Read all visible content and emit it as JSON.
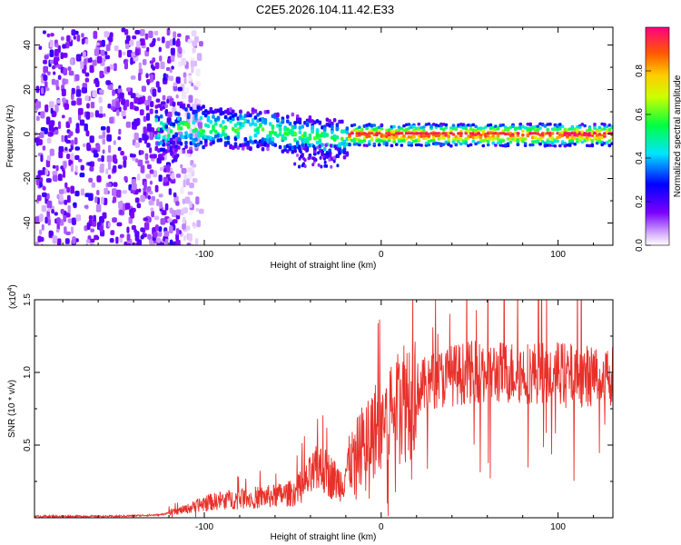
{
  "title": "C2E5.2026.104.11.42.E33",
  "colors": {
    "snr_line": "#e8302a",
    "axis": "#000000",
    "background": "#ffffff"
  },
  "chart_data": [
    {
      "type": "heatmap",
      "name": "spectrogram",
      "xlabel": "Height of straight line (km)",
      "ylabel": "Frequency (Hz)",
      "xlim": [
        -196,
        131
      ],
      "ylim": [
        -50,
        48
      ],
      "xticks": [
        -100,
        0,
        100
      ],
      "yticks": [
        -40,
        -20,
        0,
        20,
        40
      ],
      "colorbar": {
        "label": "Normalized spectral amplitude",
        "range": [
          0.0,
          1.0
        ],
        "ticks": [
          "0.0",
          "0.2",
          "0.4",
          "0.6",
          "0.8"
        ]
      },
      "features": [
        {
          "desc": "diffuse low-amplitude noise",
          "x_range": [
            -196,
            -115
          ],
          "freq_range": [
            -50,
            48
          ],
          "amplitude": 0.15
        },
        {
          "desc": "dominant band",
          "x_range": [
            -130,
            -20
          ],
          "center_freq": [
            4,
            1
          ],
          "amplitude": 0.45
        },
        {
          "desc": "dominant band (strong)",
          "x_range": [
            -20,
            131
          ],
          "center_freq": 0,
          "amplitude": 0.9
        }
      ]
    },
    {
      "type": "line",
      "name": "snr",
      "xlabel": "Height of straight line (km)",
      "ylabel": "SNR (10 * v/v)",
      "scale_label": "(x10",
      "scale_exp": "4",
      "scale_close": ")",
      "xlim": [
        -196,
        131
      ],
      "ylim": [
        0,
        1.5
      ],
      "xticks": [
        -100,
        0,
        100
      ],
      "yticks": [
        "0.5",
        "1.0",
        "1.5"
      ],
      "profile": {
        "x": [
          -196,
          -150,
          -125,
          -110,
          -100,
          -90,
          -80,
          -70,
          -60,
          -50,
          -45,
          -40,
          -35,
          -30,
          -25,
          -22,
          -20,
          -15,
          -10,
          -5,
          0,
          5,
          10,
          20,
          30,
          40,
          50,
          60,
          70,
          80,
          90,
          100,
          110,
          120,
          131
        ],
        "y": [
          0.01,
          0.01,
          0.02,
          0.06,
          0.1,
          0.12,
          0.13,
          0.14,
          0.15,
          0.17,
          0.2,
          0.28,
          0.34,
          0.3,
          0.25,
          0.24,
          0.33,
          0.42,
          0.52,
          0.58,
          0.66,
          0.74,
          0.8,
          0.88,
          0.94,
          0.98,
          1.0,
          1.0,
          1.0,
          1.0,
          1.0,
          1.0,
          0.98,
          0.98,
          0.98
        ]
      }
    }
  ]
}
